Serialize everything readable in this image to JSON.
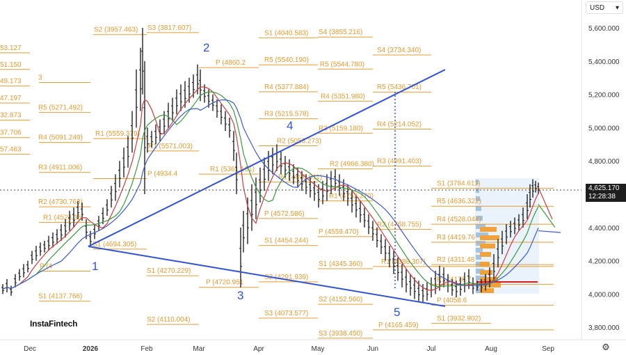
{
  "header": {
    "currency": "USD",
    "currency_icon": "chevron-down-icon"
  },
  "brand": "InstaFintech",
  "last_price": {
    "value": "4,625.170",
    "time": "12:28:38"
  },
  "chart_data": {
    "type": "candlestick",
    "symbol_note": "",
    "y_axis": {
      "min": 3660000,
      "max": 5700000,
      "ticks": [
        "5,600.000",
        "5,400.000",
        "5,200.000",
        "5,000.000",
        "4,800.000",
        "4,600.000",
        "4,400.000",
        "4,200.000",
        "4,000.000",
        "3,800.000"
      ]
    },
    "x_ticks": [
      "Dec",
      "2026",
      "Feb",
      "Mar",
      "Apr",
      "May",
      "Jun",
      "Jul",
      "Aug",
      "Sep"
    ],
    "pivot_labels": [
      {
        "text": "53.127"
      },
      {
        "text": "51.150"
      },
      {
        "text": "49.173"
      },
      {
        "text": "47.197"
      },
      {
        "text": "32.873"
      },
      {
        "text": "37.706"
      },
      {
        "text": "57.463"
      },
      {
        "text": "3"
      },
      {
        "text": "R5 (5271.492)"
      },
      {
        "text": "R4 (5091.249)"
      },
      {
        "text": "R3 (4911.006)"
      },
      {
        "text": "R2 (4730.763)"
      },
      {
        "text": "R1 (4524.35"
      },
      {
        "text": "P (4"
      },
      {
        "text": "S1 (4137.766)"
      },
      {
        "text": "S2 (3957.463)"
      },
      {
        "text": "R1 (5559.379)"
      },
      {
        "text": "P (4934.4"
      },
      {
        "text": "S1 (4694.305)"
      },
      {
        "text": "S1 (4270.229)"
      },
      {
        "text": "S2 (4110.004)"
      },
      {
        "text": "S3 (3817.607)"
      },
      {
        "text": "R1 (5571.003)"
      },
      {
        "text": "P (4860.2"
      },
      {
        "text": "R1 (5361.161)"
      },
      {
        "text": "P (4720.951"
      },
      {
        "text": "S1 (4040.583)"
      },
      {
        "text": "R5 (5540.190)"
      },
      {
        "text": "R4 (5377.884)"
      },
      {
        "text": "R3 (5215.578)"
      },
      {
        "text": "R2 (5053.273)"
      },
      {
        "text": "R1 (4890.911)"
      },
      {
        "text": "P (4572.586)"
      },
      {
        "text": "S1 (4454.244)"
      },
      {
        "text": "S2 (4291.939)"
      },
      {
        "text": "S3 (4073.577)"
      },
      {
        "text": "S4 (3855.216)"
      },
      {
        "text": "R5 (5544.780)"
      },
      {
        "text": "R4 (5351.980)"
      },
      {
        "text": "R3 (5159.180)"
      },
      {
        "text": "R2 (4966.380)"
      },
      {
        "text": "R1 (4752.270)"
      },
      {
        "text": "P (4559.470)"
      },
      {
        "text": "S1 (4345.360)"
      },
      {
        "text": "S2 (4152.560)"
      },
      {
        "text": "S3 (3938.450)"
      },
      {
        "text": "S4 (3734.340)"
      },
      {
        "text": "R5 (5436.701)"
      },
      {
        "text": "R4 (5214.052)"
      },
      {
        "text": "R3 (4991.403)"
      },
      {
        "text": "R2 (4768.755)"
      },
      {
        "text": "R1 (4388.307)"
      },
      {
        "text": "P (4165.459)"
      },
      {
        "text": "S1 (3784.611)"
      },
      {
        "text": "R5 (4636.322)"
      },
      {
        "text": "R4 (4528.044)"
      },
      {
        "text": "R3 (4419.76"
      },
      {
        "text": "R2 (4311.48"
      },
      {
        "text": "R1 (4176.7"
      },
      {
        "text": "P (4058.6"
      },
      {
        "text": "S1 (3932.902)"
      },
      {
        "text": "S2 (3824.624)"
      }
    ],
    "wave_labels": [
      "1",
      "2",
      "3",
      "4",
      "5"
    ],
    "candles": [],
    "colors": {
      "pivot": "#e69b2f",
      "trendline": "#2f52d6",
      "ema_fast": "#d03a3a",
      "ema_mid": "#3a9a3a",
      "ema_slow": "#3a5ad0",
      "volume_profile": "#f2a23a",
      "poc": "#d62020"
    }
  }
}
